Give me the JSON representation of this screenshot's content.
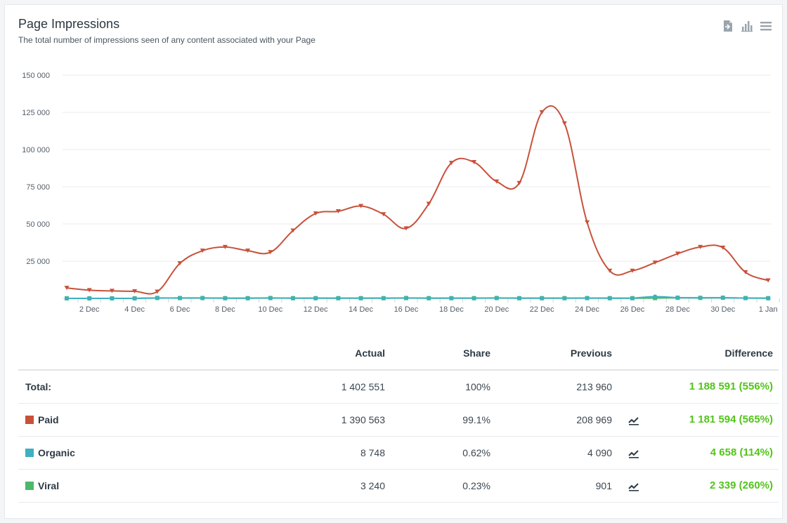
{
  "header": {
    "title": "Page Impressions",
    "subtitle": "The total number of impressions seen of any content associated with your Page"
  },
  "toolbar": {
    "icons": [
      "export-icon",
      "bar-chart-icon",
      "menu-icon"
    ]
  },
  "colors": {
    "paid": "#c8513a",
    "organic": "#3eb0c2",
    "viral": "#4cb86a",
    "difference": "#52c41a"
  },
  "chart_data": {
    "type": "line",
    "y_ticks": [
      "25 000",
      "50 000",
      "75 000",
      "100 000",
      "125 000",
      "150 000"
    ],
    "ylim": [
      0,
      150000
    ],
    "x_tick_labels": [
      "2 Dec",
      "4 Dec",
      "6 Dec",
      "8 Dec",
      "10 Dec",
      "12 Dec",
      "14 Dec",
      "16 Dec",
      "18 Dec",
      "20 Dec",
      "22 Dec",
      "24 Dec",
      "26 Dec",
      "28 Dec",
      "30 Dec",
      "1 Jan"
    ],
    "x": [
      "1 Dec",
      "2 Dec",
      "3 Dec",
      "4 Dec",
      "5 Dec",
      "6 Dec",
      "7 Dec",
      "8 Dec",
      "9 Dec",
      "10 Dec",
      "11 Dec",
      "12 Dec",
      "13 Dec",
      "14 Dec",
      "15 Dec",
      "16 Dec",
      "17 Dec",
      "18 Dec",
      "19 Dec",
      "20 Dec",
      "21 Dec",
      "22 Dec",
      "23 Dec",
      "24 Dec",
      "25 Dec",
      "26 Dec",
      "27 Dec",
      "28 Dec",
      "29 Dec",
      "30 Dec",
      "31 Dec",
      "1 Jan"
    ],
    "grid": true,
    "series": [
      {
        "name": "Paid",
        "marker": "triangle-down",
        "values": [
          7000,
          5500,
          5000,
          4700,
          4500,
          23500,
          32000,
          34500,
          32000,
          31000,
          45500,
          57000,
          58500,
          62000,
          56500,
          47000,
          63500,
          91000,
          91500,
          78500,
          77500,
          125000,
          117500,
          51000,
          18500,
          18500,
          24000,
          30000,
          34500,
          34000,
          17500,
          12000
        ]
      },
      {
        "name": "Organic",
        "marker": "circle",
        "values": [
          0,
          0,
          0,
          0,
          200,
          300,
          300,
          200,
          200,
          300,
          200,
          200,
          200,
          200,
          200,
          300,
          200,
          200,
          200,
          300,
          200,
          200,
          200,
          200,
          200,
          200,
          1200,
          500,
          400,
          400,
          200,
          200
        ]
      },
      {
        "name": "Viral",
        "marker": "square",
        "values": [
          0,
          0,
          0,
          0,
          300,
          200,
          200,
          100,
          100,
          200,
          100,
          100,
          100,
          100,
          100,
          200,
          100,
          100,
          100,
          200,
          100,
          100,
          100,
          200,
          100,
          100,
          200,
          400,
          300,
          400,
          200,
          100
        ]
      }
    ]
  },
  "table": {
    "columns": [
      "Actual",
      "Share",
      "Previous",
      "Difference"
    ],
    "rows": [
      {
        "name": "Total:",
        "actual": "1 402 551",
        "share": "100%",
        "previous": "213 960",
        "difference": "1 188 591 (556%)",
        "swatch": "",
        "trend": false
      },
      {
        "name": "Paid",
        "actual": "1 390 563",
        "share": "99.1%",
        "previous": "208 969",
        "difference": "1 181 594 (565%)",
        "swatch": "#c8513a",
        "trend": true
      },
      {
        "name": "Organic",
        "actual": "8 748",
        "share": "0.62%",
        "previous": "4 090",
        "difference": "4 658 (114%)",
        "swatch": "#3eb0c2",
        "trend": true
      },
      {
        "name": "Viral",
        "actual": "3 240",
        "share": "0.23%",
        "previous": "901",
        "difference": "2 339 (260%)",
        "swatch": "#4cb86a",
        "trend": true
      }
    ]
  }
}
